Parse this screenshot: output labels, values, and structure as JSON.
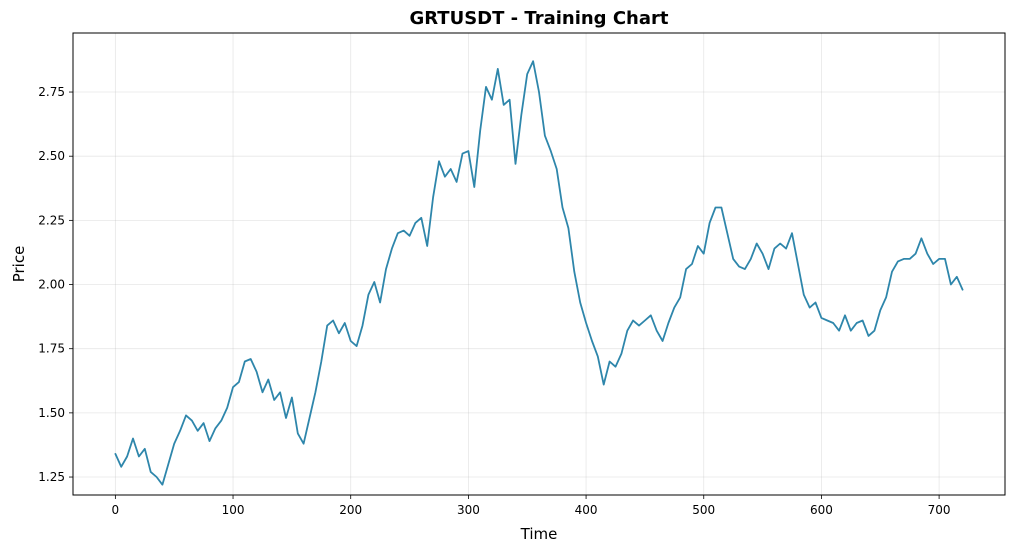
{
  "chart_data": {
    "type": "line",
    "title": "GRTUSDT - Training Chart",
    "xlabel": "Time",
    "ylabel": "Price",
    "xlim": [
      -36,
      756
    ],
    "ylim": [
      1.18,
      2.98
    ],
    "xticks": [
      0,
      100,
      200,
      300,
      400,
      500,
      600,
      700
    ],
    "yticks": [
      1.25,
      1.5,
      1.75,
      2.0,
      2.25,
      2.5,
      2.75
    ],
    "ytick_labels": [
      "1.25",
      "1.50",
      "1.75",
      "2.00",
      "2.25",
      "2.50",
      "2.75"
    ],
    "grid": true,
    "line_color": "#2e86ab",
    "series": [
      {
        "x": [
          0,
          5,
          10,
          15,
          20,
          25,
          30,
          35,
          40,
          45,
          50,
          55,
          60,
          65,
          70,
          75,
          80,
          85,
          90,
          95,
          100,
          105,
          110,
          115,
          120,
          125,
          130,
          135,
          140,
          145,
          150,
          155,
          160,
          165,
          170,
          175,
          180,
          185,
          190,
          195,
          200,
          205,
          210,
          215,
          220,
          225,
          230,
          235,
          240,
          245,
          250,
          255,
          260,
          265,
          270,
          275,
          280,
          285,
          290,
          295,
          300,
          305,
          310,
          315,
          320,
          325,
          330,
          335,
          340,
          345,
          350,
          355,
          360,
          365,
          370,
          375,
          380,
          385,
          390,
          395,
          400,
          405,
          410,
          415,
          420,
          425,
          430,
          435,
          440,
          445,
          450,
          455,
          460,
          465,
          470,
          475,
          480,
          485,
          490,
          495,
          500,
          505,
          510,
          515,
          520,
          525,
          530,
          535,
          540,
          545,
          550,
          555,
          560,
          565,
          570,
          575,
          580,
          585,
          590,
          595,
          600,
          605,
          610,
          615,
          620,
          625,
          630,
          635,
          640,
          645,
          650,
          655,
          660,
          665,
          670,
          675,
          680,
          685,
          690,
          695,
          700,
          705,
          710,
          715,
          720
        ],
        "values": [
          1.34,
          1.29,
          1.33,
          1.4,
          1.33,
          1.36,
          1.27,
          1.25,
          1.22,
          1.3,
          1.38,
          1.43,
          1.49,
          1.47,
          1.43,
          1.46,
          1.39,
          1.44,
          1.47,
          1.52,
          1.6,
          1.62,
          1.7,
          1.71,
          1.66,
          1.58,
          1.63,
          1.55,
          1.58,
          1.48,
          1.56,
          1.42,
          1.38,
          1.48,
          1.58,
          1.7,
          1.84,
          1.86,
          1.81,
          1.85,
          1.78,
          1.76,
          1.84,
          1.96,
          2.01,
          1.93,
          2.06,
          2.14,
          2.2,
          2.21,
          2.19,
          2.24,
          2.26,
          2.15,
          2.34,
          2.48,
          2.42,
          2.45,
          2.4,
          2.51,
          2.52,
          2.38,
          2.6,
          2.77,
          2.72,
          2.84,
          2.7,
          2.72,
          2.47,
          2.66,
          2.82,
          2.87,
          2.75,
          2.58,
          2.52,
          2.45,
          2.3,
          2.22,
          2.05,
          1.93,
          1.85,
          1.78,
          1.72,
          1.61,
          1.7,
          1.68,
          1.73,
          1.82,
          1.86,
          1.84,
          1.86,
          1.88,
          1.82,
          1.78,
          1.85,
          1.91,
          1.95,
          2.06,
          2.08,
          2.15,
          2.12,
          2.24,
          2.3,
          2.3,
          2.2,
          2.1,
          2.07,
          2.06,
          2.1,
          2.16,
          2.12,
          2.06,
          2.14,
          2.16,
          2.14,
          2.2,
          2.08,
          1.96,
          1.91,
          1.93,
          1.87,
          1.86,
          1.85,
          1.82,
          1.88,
          1.82,
          1.85,
          1.86,
          1.8,
          1.82,
          1.9,
          1.95,
          2.05,
          2.09,
          2.1,
          2.1,
          2.12,
          2.18,
          2.12,
          2.08,
          2.1,
          2.1,
          2.0,
          2.03,
          1.98
        ]
      }
    ]
  }
}
